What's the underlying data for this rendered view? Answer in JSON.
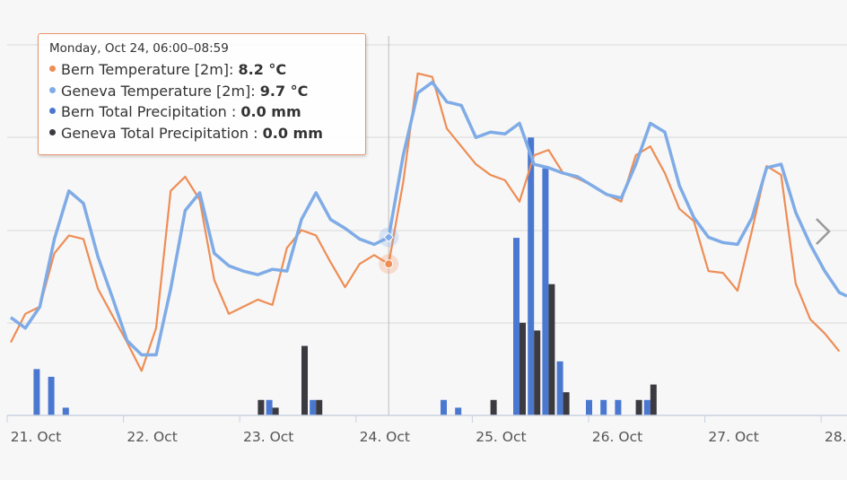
{
  "chart_data": {
    "type": "line+bar",
    "title": "",
    "x_start": "21. Oct 00:00",
    "x_step_hours": 3,
    "x_tick_labels": [
      "21. Oct",
      "22. Oct",
      "23. Oct",
      "24. Oct",
      "25. Oct",
      "26. Oct",
      "27. Oct",
      "28. Oct"
    ],
    "grid": true,
    "temp_range": [
      -0.3,
      20.5
    ],
    "precip_range": [
      0,
      4.8
    ],
    "series": [
      {
        "name": "Bern Temperature [2m]",
        "type": "line",
        "unit": "°C",
        "color": "#ee8d55",
        "values": [
          3.8,
          5.4,
          5.8,
          8.8,
          9.8,
          9.6,
          6.8,
          5.3,
          3.8,
          2.2,
          4.6,
          12.3,
          13.1,
          11.8,
          7.3,
          5.4,
          5.8,
          6.2,
          5.9,
          9.1,
          10.1,
          9.8,
          8.3,
          6.9,
          8.2,
          8.7,
          8.2,
          12.8,
          18.9,
          18.7,
          15.8,
          14.8,
          13.8,
          13.2,
          12.9,
          11.7,
          14.3,
          14.6,
          13.3,
          13.0,
          12.6,
          12.1,
          11.7,
          14.3,
          14.8,
          13.3,
          11.3,
          10.6,
          7.8,
          7.7,
          6.7,
          10.1,
          13.7,
          13.2,
          7.1,
          5.1,
          4.3,
          3.3
        ]
      },
      {
        "name": "Geneva Temperature [2m]",
        "type": "line",
        "unit": "°C",
        "color": "#7fabe6",
        "values": [
          5.2,
          4.6,
          5.8,
          9.6,
          12.3,
          11.6,
          8.6,
          6.3,
          3.9,
          3.1,
          3.1,
          6.8,
          11.2,
          12.2,
          8.8,
          8.1,
          7.8,
          7.6,
          7.9,
          7.8,
          10.7,
          12.2,
          10.7,
          10.2,
          9.6,
          9.3,
          9.7,
          14.3,
          17.8,
          18.4,
          17.3,
          17.1,
          15.3,
          15.6,
          15.5,
          16.1,
          13.8,
          13.6,
          13.3,
          13.1,
          12.6,
          12.1,
          11.9,
          13.8,
          16.1,
          15.6,
          12.6,
          10.8,
          9.7,
          9.4,
          9.3,
          10.8,
          13.6,
          13.8,
          11.1,
          9.3,
          7.8,
          6.6
        ]
      },
      {
        "name": "Bern Total Precipitation",
        "type": "bar",
        "unit": "mm",
        "color": "#4a78d0",
        "values": [
          0,
          0,
          0.6,
          0.5,
          0.1,
          0,
          0,
          0,
          0,
          0,
          0,
          0,
          0,
          0,
          0,
          0,
          0,
          0,
          0.2,
          0,
          0,
          0.2,
          0,
          0,
          0,
          0,
          0,
          0,
          0,
          0,
          0.2,
          0.1,
          0,
          0,
          0,
          2.3,
          3.6,
          3.2,
          0.7,
          0,
          0.2,
          0.2,
          0.2,
          0,
          0.2,
          0,
          0,
          0,
          0,
          0,
          0,
          0,
          0,
          0,
          0,
          0,
          0,
          0
        ]
      },
      {
        "name": "Geneva Total Precipitation",
        "type": "bar",
        "unit": "mm",
        "color": "#3a3a40",
        "values": [
          0,
          0,
          0,
          0,
          0,
          0,
          0,
          0,
          0,
          0,
          0,
          0,
          0,
          0,
          0,
          0,
          0,
          0.2,
          0.1,
          0,
          0.9,
          0.2,
          0,
          0,
          0,
          0,
          0,
          0,
          0,
          0,
          0,
          0,
          0,
          0.2,
          0,
          1.2,
          1.1,
          1.7,
          0.3,
          0,
          0,
          0,
          0,
          0.2,
          0.4,
          0,
          0,
          0,
          0,
          0,
          0,
          0,
          0,
          0,
          0,
          0,
          0,
          0
        ]
      }
    ],
    "hover_index": 26
  },
  "tooltip": {
    "header": "Monday, Oct 24, 06:00–08:59",
    "rows": [
      {
        "label": "Bern Temperature [2m]: ",
        "value": "8.2 °C",
        "color": "#ee8d55"
      },
      {
        "label": "Geneva Temperature [2m]: ",
        "value": "9.7 °C",
        "color": "#7fabe6"
      },
      {
        "label": "Bern Total Precipitation : ",
        "value": "0.0 mm",
        "color": "#4a78d0"
      },
      {
        "label": "Geneva Total Precipitation : ",
        "value": "0.0 mm",
        "color": "#3a3a40"
      }
    ]
  },
  "nav": {
    "icon": "chevron-right-icon"
  }
}
